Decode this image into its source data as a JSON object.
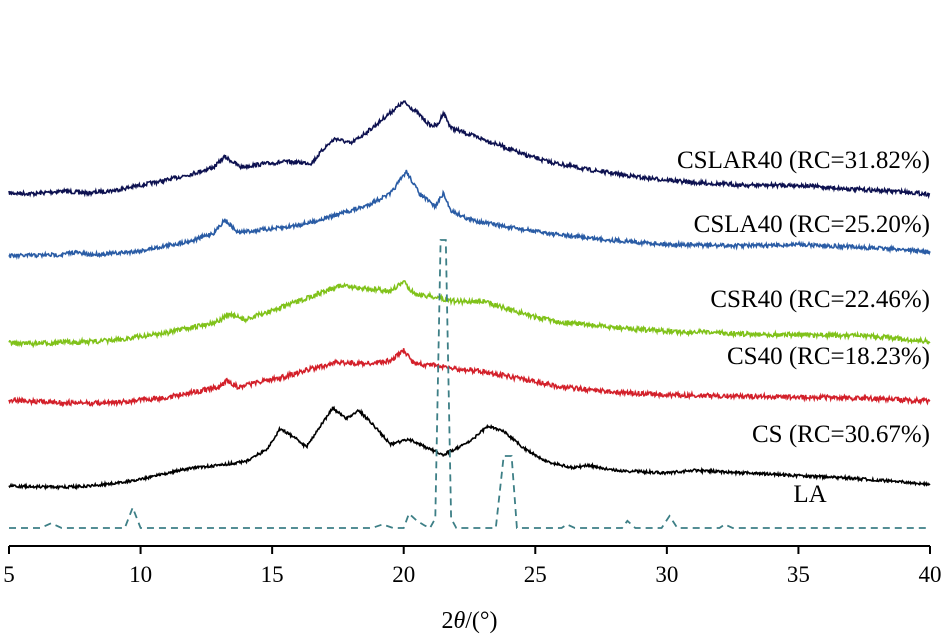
{
  "chart_data": {
    "type": "line",
    "title": "",
    "xlabel_prefix": "2",
    "xlabel_symbol": "θ",
    "xlabel_suffix": "/(°)",
    "xlim": [
      5,
      40
    ],
    "xticks": [
      5,
      10,
      15,
      20,
      25,
      30,
      35,
      40
    ],
    "y_axis_shown": false,
    "grid": false,
    "series": [
      {
        "name": "CSLAR40 (RC=31.82%)",
        "color": "#0d1150",
        "style": "solid",
        "points": [
          [
            5,
            0
          ],
          [
            6,
            -0.5
          ],
          [
            7,
            1.5
          ],
          [
            8,
            0
          ],
          [
            9,
            2
          ],
          [
            10,
            6
          ],
          [
            11,
            10
          ],
          [
            12,
            15
          ],
          [
            12.8,
            20
          ],
          [
            13.2,
            28
          ],
          [
            13.8,
            20
          ],
          [
            14.5,
            22
          ],
          [
            15.5,
            24
          ],
          [
            16.5,
            23
          ],
          [
            17,
            35
          ],
          [
            17.4,
            42
          ],
          [
            18,
            38
          ],
          [
            18.8,
            50
          ],
          [
            19.5,
            62
          ],
          [
            20,
            70
          ],
          [
            20.5,
            62
          ],
          [
            21,
            52
          ],
          [
            21.3,
            52
          ],
          [
            21.5,
            62
          ],
          [
            21.8,
            50
          ],
          [
            22.5,
            45
          ],
          [
            23.5,
            38
          ],
          [
            24.5,
            30
          ],
          [
            25.5,
            24
          ],
          [
            27,
            18
          ],
          [
            29,
            12
          ],
          [
            31,
            8
          ],
          [
            33,
            6
          ],
          [
            35,
            6
          ],
          [
            37,
            3
          ],
          [
            39,
            1
          ],
          [
            40,
            -1
          ]
        ]
      },
      {
        "name": "CSLA40 (RC=25.20%)",
        "color": "#2a5ca5",
        "style": "solid",
        "points": [
          [
            5,
            0
          ],
          [
            6,
            0.5
          ],
          [
            7,
            1
          ],
          [
            7.5,
            3
          ],
          [
            8,
            1
          ],
          [
            9,
            2
          ],
          [
            10,
            4
          ],
          [
            11,
            8
          ],
          [
            12,
            12
          ],
          [
            12.8,
            18
          ],
          [
            13.2,
            28
          ],
          [
            13.7,
            18
          ],
          [
            14.5,
            20
          ],
          [
            15.5,
            22
          ],
          [
            16.5,
            26
          ],
          [
            17.5,
            32
          ],
          [
            18.5,
            38
          ],
          [
            19.5,
            48
          ],
          [
            20.1,
            65
          ],
          [
            20.6,
            48
          ],
          [
            21.2,
            38
          ],
          [
            21.5,
            48
          ],
          [
            21.8,
            35
          ],
          [
            22.5,
            28
          ],
          [
            24,
            22
          ],
          [
            26,
            16
          ],
          [
            28,
            12
          ],
          [
            30,
            9
          ],
          [
            32,
            8
          ],
          [
            34,
            8
          ],
          [
            35,
            9
          ],
          [
            37,
            7
          ],
          [
            39,
            5
          ],
          [
            40,
            3
          ]
        ]
      },
      {
        "name": "CSR40 (RC=22.46%)",
        "color": "#80c21a",
        "style": "solid",
        "points": [
          [
            5,
            0
          ],
          [
            6,
            -0.5
          ],
          [
            7,
            0.5
          ],
          [
            8,
            1
          ],
          [
            9,
            2
          ],
          [
            10,
            5
          ],
          [
            11,
            8
          ],
          [
            12,
            12
          ],
          [
            13,
            17
          ],
          [
            13.3,
            22
          ],
          [
            14,
            18
          ],
          [
            15,
            25
          ],
          [
            16,
            32
          ],
          [
            17,
            40
          ],
          [
            17.5,
            44
          ],
          [
            18.5,
            42
          ],
          [
            19.5,
            40
          ],
          [
            20,
            47
          ],
          [
            20.4,
            38
          ],
          [
            21,
            36
          ],
          [
            22,
            32
          ],
          [
            23,
            32
          ],
          [
            24,
            26
          ],
          [
            25,
            20
          ],
          [
            26,
            16
          ],
          [
            28,
            12
          ],
          [
            30,
            9
          ],
          [
            33,
            7
          ],
          [
            36,
            6
          ],
          [
            38,
            5
          ],
          [
            40,
            1
          ]
        ]
      },
      {
        "name": "CS40 (RC=18.23%)",
        "color": "#d3202a",
        "style": "solid",
        "points": [
          [
            5,
            0
          ],
          [
            6,
            -1
          ],
          [
            7,
            -2
          ],
          [
            8,
            -2.5
          ],
          [
            9,
            -2
          ],
          [
            10,
            0
          ],
          [
            11,
            2
          ],
          [
            12,
            6
          ],
          [
            13,
            10
          ],
          [
            13.3,
            15
          ],
          [
            13.7,
            10
          ],
          [
            14.5,
            14
          ],
          [
            15.5,
            18
          ],
          [
            16.5,
            24
          ],
          [
            17.5,
            29
          ],
          [
            18.5,
            28
          ],
          [
            19.5,
            30
          ],
          [
            20,
            38
          ],
          [
            20.4,
            28
          ],
          [
            21,
            27
          ],
          [
            22,
            24
          ],
          [
            23,
            22
          ],
          [
            24,
            18
          ],
          [
            25,
            14
          ],
          [
            26,
            10
          ],
          [
            28,
            6
          ],
          [
            30,
            4
          ],
          [
            33,
            3
          ],
          [
            36,
            2
          ],
          [
            38,
            1
          ],
          [
            40,
            -1
          ]
        ]
      },
      {
        "name": "CS (RC=30.67%)",
        "color": "#000000",
        "style": "solid",
        "points": [
          [
            5,
            0
          ],
          [
            6,
            -0.5
          ],
          [
            7,
            -1
          ],
          [
            8,
            0
          ],
          [
            9,
            2
          ],
          [
            10,
            5
          ],
          [
            11,
            10
          ],
          [
            12,
            14
          ],
          [
            13,
            16
          ],
          [
            14,
            19
          ],
          [
            14.8,
            28
          ],
          [
            15.3,
            44
          ],
          [
            15.8,
            38
          ],
          [
            16.3,
            30
          ],
          [
            16.8,
            45
          ],
          [
            17.3,
            60
          ],
          [
            17.8,
            52
          ],
          [
            18.3,
            58
          ],
          [
            18.8,
            48
          ],
          [
            19.5,
            32
          ],
          [
            20.2,
            36
          ],
          [
            20.8,
            30
          ],
          [
            21.5,
            24
          ],
          [
            22.5,
            34
          ],
          [
            23.2,
            46
          ],
          [
            23.8,
            42
          ],
          [
            24.5,
            30
          ],
          [
            25.5,
            18
          ],
          [
            26.5,
            14
          ],
          [
            27,
            16
          ],
          [
            28,
            12
          ],
          [
            30,
            10
          ],
          [
            31,
            12
          ],
          [
            33,
            10
          ],
          [
            35,
            8
          ],
          [
            37,
            6
          ],
          [
            39,
            3
          ],
          [
            40,
            1
          ]
        ]
      },
      {
        "name": "LA",
        "color": "#3d7f86",
        "style": "dashed",
        "points": [
          [
            5,
            0
          ],
          [
            6.2,
            0
          ],
          [
            6.6,
            4
          ],
          [
            7,
            0
          ],
          [
            9.4,
            0
          ],
          [
            9.7,
            17
          ],
          [
            10,
            0
          ],
          [
            18.8,
            0
          ],
          [
            19.2,
            3
          ],
          [
            19.6,
            0
          ],
          [
            20,
            0
          ],
          [
            20.2,
            12
          ],
          [
            20.5,
            6
          ],
          [
            20.8,
            2
          ],
          [
            21,
            0
          ],
          [
            21.2,
            8
          ],
          [
            21.4,
            240
          ],
          [
            21.6,
            240
          ],
          [
            21.8,
            8
          ],
          [
            22,
            0
          ],
          [
            23.5,
            0
          ],
          [
            23.8,
            60
          ],
          [
            24.1,
            60
          ],
          [
            24.3,
            0
          ],
          [
            26,
            0
          ],
          [
            26.2,
            3
          ],
          [
            26.5,
            0
          ],
          [
            28.3,
            0
          ],
          [
            28.5,
            6
          ],
          [
            28.8,
            0
          ],
          [
            29.8,
            0
          ],
          [
            30.1,
            10
          ],
          [
            30.4,
            0
          ],
          [
            32,
            0
          ],
          [
            32.2,
            3
          ],
          [
            32.5,
            0
          ],
          [
            40,
            0
          ]
        ]
      }
    ]
  }
}
